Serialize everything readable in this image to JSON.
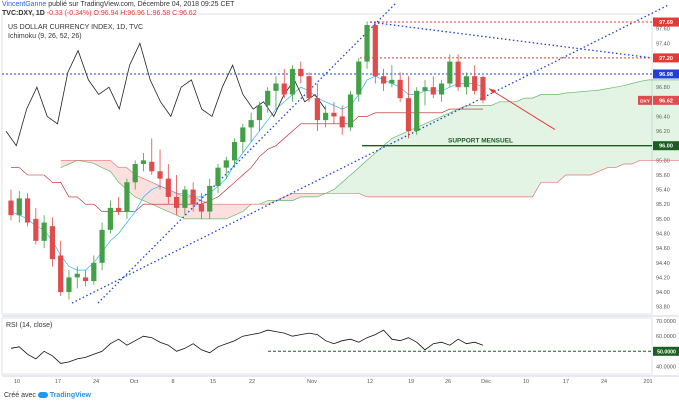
{
  "header": {
    "author": "VincentGanne",
    "publish_line": "publié sur TradingView.com, Décembre 04, 2018 09:25 CET",
    "ticker": "TVC:DXY, 1D",
    "change": "-0.33 (-0.34%)",
    "ohlc": "O:96.94 H:96.96 L:96.58 C:96.62"
  },
  "footer": {
    "credit": "Créé avec",
    "brand": "TradingView"
  },
  "chart_data": {
    "type": "candlestick",
    "title": "US DOLLAR CURRENCY INDEX, 1D, TVC",
    "indicator": "Ichimoku (9, 26, 52, 26)",
    "price_axis": {
      "ticks": [
        "97.60",
        "97.40",
        "97.20",
        "97.00",
        "96.80",
        "96.60",
        "96.40",
        "96.20",
        "96.00",
        "95.80",
        "95.60",
        "95.40",
        "95.20",
        "95.00",
        "94.80",
        "94.60",
        "94.40",
        "94.20",
        "94.00",
        "93.80"
      ],
      "ylim": [
        93.7,
        97.8
      ]
    },
    "x_axis": {
      "ticks": [
        "10",
        "17",
        "24",
        "Oct",
        "8",
        "15",
        "22",
        "Nov",
        "12",
        "19",
        "26",
        "Déc",
        "10",
        "17",
        "24",
        "201"
      ]
    },
    "badges": [
      {
        "label": "97.69",
        "value": 97.69,
        "color": "#e53935"
      },
      {
        "label": "97.20",
        "value": 97.2,
        "color": "#e53935"
      },
      {
        "label": "96.98",
        "value": 96.98,
        "color": "#1e40d8"
      },
      {
        "label": "DXY",
        "price": "96.62",
        "value": 96.62,
        "color": "#e04b4b"
      },
      {
        "label": "96.00",
        "value": 96.0,
        "color": "#1b5e20"
      }
    ],
    "annotations": {
      "support_label": "SUPPORT MENSUEL"
    },
    "candles": [
      {
        "o": 95.25,
        "h": 95.4,
        "l": 94.98,
        "c": 95.05
      },
      {
        "o": 95.05,
        "h": 95.38,
        "l": 94.95,
        "c": 95.28
      },
      {
        "o": 95.28,
        "h": 95.35,
        "l": 94.9,
        "c": 94.95
      },
      {
        "o": 95.0,
        "h": 95.15,
        "l": 94.65,
        "c": 94.7
      },
      {
        "o": 94.7,
        "h": 95.05,
        "l": 94.6,
        "c": 94.95
      },
      {
        "o": 94.9,
        "h": 95.02,
        "l": 94.35,
        "c": 94.45
      },
      {
        "o": 94.5,
        "h": 94.7,
        "l": 93.95,
        "c": 94.0
      },
      {
        "o": 94.0,
        "h": 94.3,
        "l": 93.9,
        "c": 94.2
      },
      {
        "o": 94.2,
        "h": 94.35,
        "l": 94.05,
        "c": 94.25
      },
      {
        "o": 94.2,
        "h": 94.3,
        "l": 94.08,
        "c": 94.15
      },
      {
        "o": 94.15,
        "h": 94.5,
        "l": 94.1,
        "c": 94.4
      },
      {
        "o": 94.4,
        "h": 94.95,
        "l": 94.3,
        "c": 94.85
      },
      {
        "o": 94.85,
        "h": 95.25,
        "l": 94.8,
        "c": 95.15
      },
      {
        "o": 95.15,
        "h": 95.3,
        "l": 95.05,
        "c": 95.1
      },
      {
        "o": 95.1,
        "h": 95.55,
        "l": 95.0,
        "c": 95.5
      },
      {
        "o": 95.5,
        "h": 95.8,
        "l": 95.4,
        "c": 95.75
      },
      {
        "o": 95.75,
        "h": 95.9,
        "l": 95.65,
        "c": 95.8
      },
      {
        "o": 95.78,
        "h": 96.1,
        "l": 95.6,
        "c": 95.65
      },
      {
        "o": 95.65,
        "h": 95.95,
        "l": 95.4,
        "c": 95.55
      },
      {
        "o": 95.55,
        "h": 95.75,
        "l": 95.2,
        "c": 95.3
      },
      {
        "o": 95.3,
        "h": 95.6,
        "l": 95.05,
        "c": 95.15
      },
      {
        "o": 95.15,
        "h": 95.45,
        "l": 95.05,
        "c": 95.4
      },
      {
        "o": 95.4,
        "h": 95.5,
        "l": 95.1,
        "c": 95.2
      },
      {
        "o": 95.2,
        "h": 95.35,
        "l": 95.0,
        "c": 95.1
      },
      {
        "o": 95.1,
        "h": 95.55,
        "l": 95.0,
        "c": 95.45
      },
      {
        "o": 95.45,
        "h": 95.75,
        "l": 95.35,
        "c": 95.7
      },
      {
        "o": 95.7,
        "h": 95.85,
        "l": 95.55,
        "c": 95.8
      },
      {
        "o": 95.8,
        "h": 96.1,
        "l": 95.7,
        "c": 96.05
      },
      {
        "o": 96.05,
        "h": 96.3,
        "l": 95.9,
        "c": 96.25
      },
      {
        "o": 96.25,
        "h": 96.45,
        "l": 96.05,
        "c": 96.35
      },
      {
        "o": 96.35,
        "h": 96.6,
        "l": 96.2,
        "c": 96.55
      },
      {
        "o": 96.55,
        "h": 96.8,
        "l": 96.45,
        "c": 96.75
      },
      {
        "o": 96.75,
        "h": 96.95,
        "l": 96.5,
        "c": 96.85
      },
      {
        "o": 96.85,
        "h": 97.05,
        "l": 96.65,
        "c": 96.7
      },
      {
        "o": 96.7,
        "h": 97.1,
        "l": 96.6,
        "c": 97.05
      },
      {
        "o": 97.05,
        "h": 97.15,
        "l": 96.85,
        "c": 96.95
      },
      {
        "o": 96.95,
        "h": 97.0,
        "l": 96.6,
        "c": 96.65
      },
      {
        "o": 96.65,
        "h": 96.85,
        "l": 96.2,
        "c": 96.35
      },
      {
        "o": 96.35,
        "h": 96.55,
        "l": 96.25,
        "c": 96.45
      },
      {
        "o": 96.45,
        "h": 96.6,
        "l": 96.3,
        "c": 96.4
      },
      {
        "o": 96.4,
        "h": 96.55,
        "l": 96.15,
        "c": 96.25
      },
      {
        "o": 96.25,
        "h": 96.75,
        "l": 96.2,
        "c": 96.7
      },
      {
        "o": 96.7,
        "h": 97.2,
        "l": 96.6,
        "c": 97.15
      },
      {
        "o": 97.15,
        "h": 97.7,
        "l": 97.05,
        "c": 97.65
      },
      {
        "o": 97.65,
        "h": 97.7,
        "l": 96.85,
        "c": 96.95
      },
      {
        "o": 96.95,
        "h": 97.05,
        "l": 96.75,
        "c": 96.85
      },
      {
        "o": 96.85,
        "h": 97.1,
        "l": 96.8,
        "c": 96.9
      },
      {
        "o": 96.9,
        "h": 97.0,
        "l": 96.6,
        "c": 96.65
      },
      {
        "o": 96.65,
        "h": 96.95,
        "l": 96.1,
        "c": 96.2
      },
      {
        "o": 96.2,
        "h": 96.8,
        "l": 96.15,
        "c": 96.75
      },
      {
        "o": 96.75,
        "h": 96.9,
        "l": 96.55,
        "c": 96.8
      },
      {
        "o": 96.8,
        "h": 96.95,
        "l": 96.65,
        "c": 96.7
      },
      {
        "o": 96.7,
        "h": 96.9,
        "l": 96.6,
        "c": 96.85
      },
      {
        "o": 96.85,
        "h": 97.25,
        "l": 96.8,
        "c": 97.15
      },
      {
        "o": 97.15,
        "h": 97.25,
        "l": 96.75,
        "c": 96.8
      },
      {
        "o": 96.8,
        "h": 97.0,
        "l": 96.7,
        "c": 96.95
      },
      {
        "o": 96.95,
        "h": 97.1,
        "l": 96.7,
        "c": 96.75
      },
      {
        "o": 96.94,
        "h": 96.96,
        "l": 96.58,
        "c": 96.62
      }
    ],
    "lagging_span": [
      96.2,
      96.0,
      96.5,
      96.8,
      96.4,
      96.3,
      97.0,
      97.3,
      96.9,
      96.7,
      96.8,
      96.5,
      97.1,
      97.4,
      96.9,
      96.6,
      96.4,
      96.8,
      96.9,
      96.5,
      96.4,
      96.8,
      97.1,
      96.7,
      96.5,
      96.6,
      96.4,
      96.7,
      96.9,
      96.6,
      96.7,
      96.5
    ],
    "tenkan": [
      95.1,
      95.05,
      95.0,
      94.9,
      94.85,
      94.7,
      94.5,
      94.35,
      94.3,
      94.3,
      94.4,
      94.55,
      94.7,
      94.8,
      94.95,
      95.1,
      95.3,
      95.4,
      95.45,
      95.4,
      95.35,
      95.35,
      95.3,
      95.3,
      95.35,
      95.45,
      95.55,
      95.75,
      95.9,
      96.05,
      96.2,
      96.35,
      96.5,
      96.6,
      96.7,
      96.8,
      96.75,
      96.65,
      96.6,
      96.55,
      96.5,
      96.55,
      96.7,
      96.9,
      96.95,
      96.9,
      96.85,
      96.8,
      96.7,
      96.7,
      96.75,
      96.75,
      96.75,
      96.8,
      96.85,
      96.85,
      96.85,
      96.8
    ],
    "kijun": [
      95.7,
      95.7,
      95.6,
      95.6,
      95.6,
      95.5,
      95.5,
      95.3,
      95.3,
      95.2,
      95.2,
      95.1,
      95.1,
      95.1,
      95.1,
      95.1,
      95.2,
      95.2,
      95.2,
      95.2,
      95.2,
      95.2,
      95.2,
      95.2,
      95.25,
      95.3,
      95.4,
      95.5,
      95.6,
      95.7,
      95.85,
      95.95,
      96.0,
      96.1,
      96.2,
      96.3,
      96.3,
      96.3,
      96.3,
      96.3,
      96.3,
      96.3,
      96.4,
      96.4,
      96.45,
      96.45,
      96.45,
      96.45,
      96.45,
      96.45,
      96.45,
      96.45,
      96.45,
      96.5,
      96.5,
      96.5,
      96.5,
      96.5
    ],
    "senkou_a": [
      95.7,
      95.75,
      95.8,
      95.78,
      95.76,
      95.7,
      95.65,
      95.5,
      95.4,
      95.3,
      95.25,
      95.2,
      95.15,
      95.1,
      95.05,
      95.0,
      95.0,
      95.0,
      95.0,
      95.0,
      95.0,
      95.05,
      95.1,
      95.2,
      95.2,
      95.25,
      95.25,
      95.25,
      95.25,
      95.3,
      95.3,
      95.3,
      95.35,
      95.4,
      95.5,
      95.6,
      95.7,
      95.8,
      95.9,
      96.0,
      96.1,
      96.15,
      96.2,
      96.25,
      96.3,
      96.35,
      96.4,
      96.45,
      96.5,
      96.55,
      96.55,
      96.55,
      96.55,
      96.6,
      96.6,
      96.6,
      96.65,
      96.65,
      96.7,
      96.7,
      96.7,
      96.72,
      96.73,
      96.74,
      96.75,
      96.76,
      96.78,
      96.8,
      96.82,
      96.85,
      96.88,
      96.9,
      96.9,
      96.9,
      96.9,
      96.9,
      96.92,
      96.94
    ],
    "senkou_b": [
      95.8,
      95.8,
      95.8,
      95.8,
      95.8,
      95.8,
      95.8,
      95.7,
      95.7,
      95.6,
      95.55,
      95.5,
      95.45,
      95.4,
      95.35,
      95.3,
      95.3,
      95.25,
      95.2,
      95.2,
      95.2,
      95.2,
      95.2,
      95.2,
      95.2,
      95.2,
      95.25,
      95.3,
      95.35,
      95.35,
      95.35,
      95.35,
      95.35,
      95.35,
      95.35,
      95.35,
      95.35,
      95.3,
      95.3,
      95.3,
      95.3,
      95.3,
      95.3,
      95.3,
      95.3,
      95.3,
      95.3,
      95.3,
      95.3,
      95.3,
      95.3,
      95.3,
      95.3,
      95.3,
      95.3,
      95.3,
      95.3,
      95.3,
      95.5,
      95.5,
      95.5,
      95.6,
      95.6,
      95.6,
      95.6,
      95.65,
      95.7,
      95.7,
      95.75,
      95.75,
      95.8,
      95.8,
      95.8,
      95.8,
      95.8,
      95.8,
      95.8,
      95.8
    ],
    "rsi": {
      "label": "RSI (14, close)",
      "ticks": [
        "70.0000",
        "60.0000",
        "40.0000"
      ],
      "ylim": [
        35,
        72
      ],
      "badge": {
        "label": "50.0000",
        "value": 50
      },
      "values": [
        52,
        53,
        48,
        45,
        50,
        47,
        42,
        43,
        45,
        46,
        48,
        50,
        55,
        58,
        54,
        57,
        60,
        59,
        56,
        54,
        50,
        52,
        55,
        51,
        49,
        53,
        55,
        57,
        60,
        61,
        62,
        64,
        63,
        62,
        60,
        61,
        62,
        61,
        57,
        55,
        57,
        58,
        56,
        59,
        61,
        64,
        58,
        57,
        59,
        56,
        51,
        55,
        56,
        54,
        58,
        55,
        56,
        54
      ]
    }
  }
}
